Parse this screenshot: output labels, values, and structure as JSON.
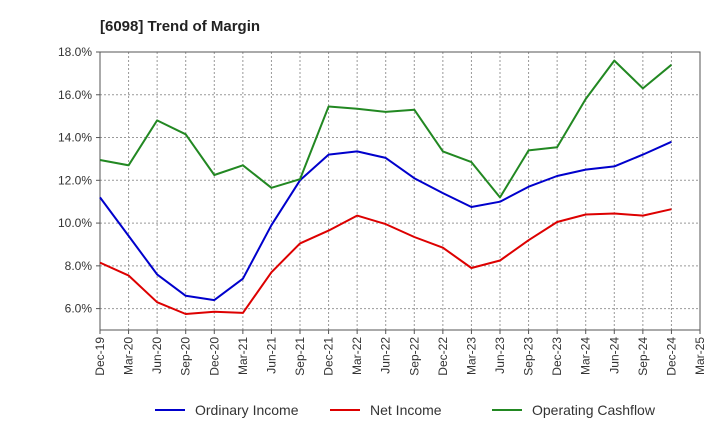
{
  "chart_data": {
    "type": "line",
    "title": "[6098]  Trend of Margin",
    "xlabel": "",
    "ylabel": "",
    "ylim": [
      5.0,
      18.0
    ],
    "y_ticks": [
      "6.0%",
      "8.0%",
      "10.0%",
      "12.0%",
      "14.0%",
      "16.0%",
      "18.0%"
    ],
    "y_tick_values": [
      6,
      8,
      10,
      12,
      14,
      16,
      18
    ],
    "grid": true,
    "legend_position": "bottom",
    "categories": [
      "Dec-19",
      "Mar-20",
      "Jun-20",
      "Sep-20",
      "Dec-20",
      "Mar-21",
      "Jun-21",
      "Sep-21",
      "Dec-21",
      "Mar-22",
      "Jun-22",
      "Sep-22",
      "Dec-22",
      "Mar-23",
      "Jun-23",
      "Sep-23",
      "Dec-23",
      "Mar-24",
      "Jun-24",
      "Sep-24",
      "Dec-24",
      "Mar-25"
    ],
    "series": [
      {
        "name": "Ordinary Income",
        "color": "#0000cc",
        "values": [
          11.2,
          9.4,
          7.6,
          6.6,
          6.4,
          7.4,
          9.9,
          12.0,
          13.2,
          13.35,
          13.05,
          12.1,
          11.4,
          10.75,
          11.0,
          11.7,
          12.2,
          12.5,
          12.65,
          13.2,
          13.8,
          null
        ]
      },
      {
        "name": "Net Income",
        "color": "#dd0000",
        "values": [
          8.15,
          7.55,
          6.3,
          5.75,
          5.85,
          5.8,
          7.7,
          9.05,
          9.65,
          10.35,
          9.95,
          9.35,
          8.85,
          7.9,
          8.25,
          9.2,
          10.05,
          10.4,
          10.45,
          10.35,
          10.65,
          null
        ]
      },
      {
        "name": "Operating Cashflow",
        "color": "#228822",
        "values": [
          12.95,
          12.7,
          14.8,
          14.15,
          12.25,
          12.7,
          11.65,
          12.05,
          15.45,
          15.35,
          15.2,
          15.3,
          13.35,
          12.85,
          11.2,
          13.4,
          13.55,
          15.8,
          17.6,
          16.3,
          17.4,
          null
        ]
      }
    ]
  }
}
